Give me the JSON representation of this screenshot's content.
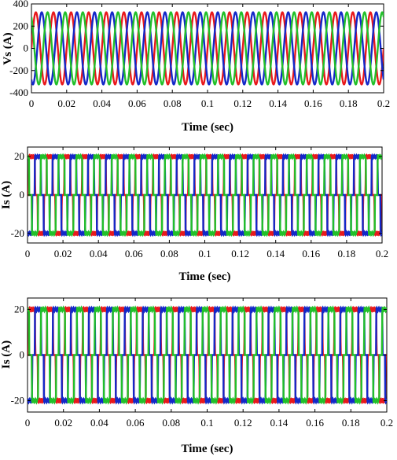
{
  "chart_data": [
    {
      "type": "line",
      "xlabel": "Time (sec)",
      "ylabel": "Vs (A)",
      "xlim": [
        0,
        0.2
      ],
      "ylim": [
        -400,
        400
      ],
      "xticks": [
        "0",
        "0.02",
        "0.04",
        "0.06",
        "0.08",
        "0.1",
        "0.12",
        "0.14",
        "0.16",
        "0.18",
        "0.2"
      ],
      "yticks": [
        "400",
        "200",
        "0",
        "-200",
        "-400"
      ],
      "waveform": "sinusoidal",
      "amplitude": 325,
      "frequency_hz": 100,
      "series": [
        {
          "color": "#e8191c",
          "phase_deg": 0
        },
        {
          "color": "#1428c8",
          "phase_deg": -120
        },
        {
          "color": "#22c02a",
          "phase_deg": 120
        }
      ]
    },
    {
      "type": "line",
      "xlabel": "Time (sec)",
      "ylabel": "Is (A)",
      "xlim": [
        0,
        0.2
      ],
      "ylim": [
        -25,
        25
      ],
      "xticks": [
        "0",
        "0.02",
        "0.04",
        "0.06",
        "0.08",
        "0.1",
        "0.12",
        "0.14",
        "0.16",
        "0.18",
        "0.2"
      ],
      "yticks": [
        "20",
        "0",
        "-20"
      ],
      "waveform": "quasi-square (120° conduction)",
      "amplitude": 20,
      "frequency_hz": 100,
      "series": [
        {
          "color": "#e8191c",
          "phase_deg": 0
        },
        {
          "color": "#1428c8",
          "phase_deg": -120
        },
        {
          "color": "#22c02a",
          "phase_deg": 120
        }
      ]
    },
    {
      "type": "line",
      "xlabel": "Time (sec)",
      "ylabel": "Is (A)",
      "xlim": [
        0,
        0.2
      ],
      "ylim": [
        -25,
        25
      ],
      "xticks": [
        "0",
        "0.02",
        "0.04",
        "0.06",
        "0.08",
        "0.1",
        "0.12",
        "0.14",
        "0.16",
        "0.18",
        "0.2"
      ],
      "yticks": [
        "20",
        "0",
        "-20"
      ],
      "waveform": "quasi-square (120° conduction)",
      "amplitude": 20,
      "frequency_hz": 100,
      "series": [
        {
          "color": "#e8191c",
          "phase_deg": 0
        },
        {
          "color": "#1428c8",
          "phase_deg": -120
        },
        {
          "color": "#22c02a",
          "phase_deg": 120
        }
      ]
    }
  ]
}
